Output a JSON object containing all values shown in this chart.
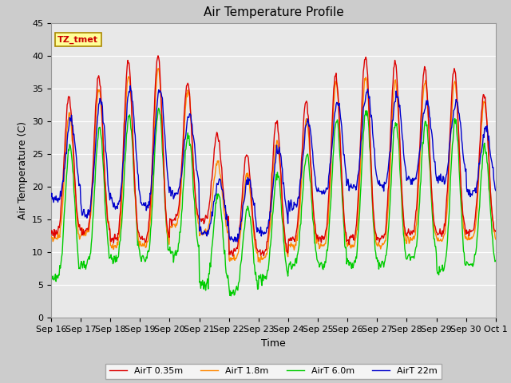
{
  "title": "Air Temperature Profile",
  "xlabel": "Time",
  "ylabel": "Air Temperature (C)",
  "ylim": [
    0,
    45
  ],
  "annotation": "TZ_tmet",
  "legend_labels": [
    "AirT 0.35m",
    "AirT 1.8m",
    "AirT 6.0m",
    "AirT 22m"
  ],
  "line_colors": [
    "#dd0000",
    "#ff8800",
    "#00cc00",
    "#0000cc"
  ],
  "fig_facecolor": "#cccccc",
  "ax_facecolor": "#e8e8e8",
  "x_tick_labels": [
    "Sep 16",
    "Sep 17",
    "Sep 18",
    "Sep 19",
    "Sep 20",
    "Sep 21",
    "Sep 22",
    "Sep 23",
    "Sep 24",
    "Sep 25",
    "Sep 26",
    "Sep 27",
    "Sep 28",
    "Sep 29",
    "Sep 30",
    "Oct 1"
  ],
  "num_days": 15,
  "points_per_day": 48
}
